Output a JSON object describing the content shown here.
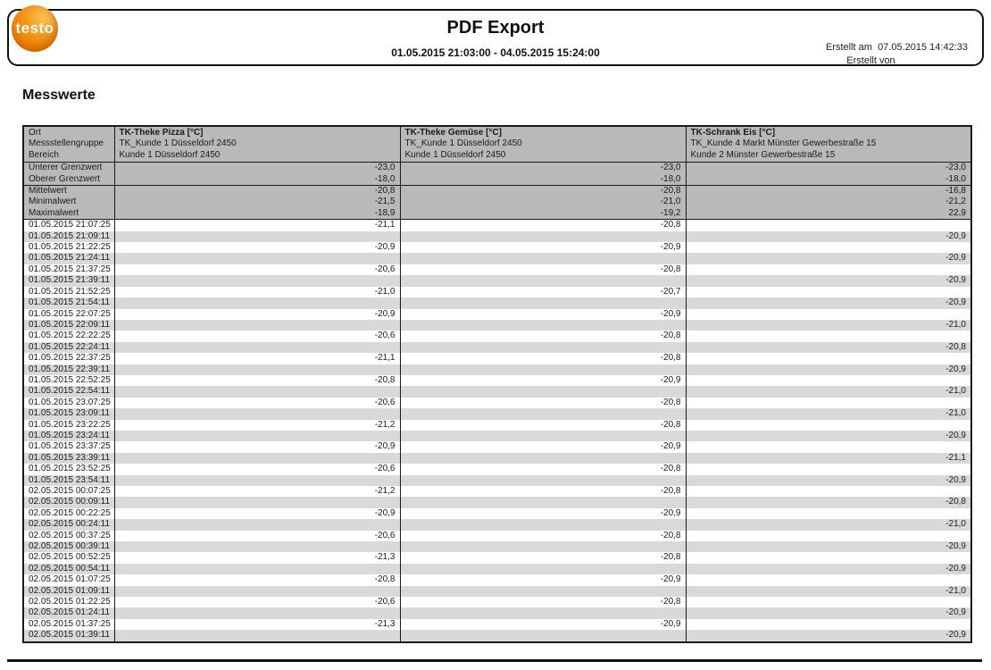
{
  "header": {
    "logo_text": "testo",
    "title": "PDF Export",
    "date_range": "01.05.2015 21:03:00 - 04.05.2015 15:24:00",
    "created_at_label": "Erstellt am",
    "created_at_value": "07.05.2015 14:42:33",
    "created_by_label": "Erstellt von"
  },
  "section_title": "Messwerte",
  "colors": {
    "header_gray": "#b9b9b9",
    "row_gray": "#d9d9d9",
    "border_black": "#1a1a1a",
    "logo_orange": "#ef7d00"
  },
  "table": {
    "row_header_labels": [
      "Ort",
      "Messstellengruppe",
      "Bereich"
    ],
    "columns": [
      {
        "title": "TK-Theke Pizza [°C]",
        "group": "TK_Kunde 1 Düsseldorf 2450",
        "area": "Kunde 1 Düsseldorf 2450"
      },
      {
        "title": "TK-Theke Gemüse [°C]",
        "group": "TK_Kunde 1 Düsseldorf 2450",
        "area": "Kunde 1 Düsseldorf 2450"
      },
      {
        "title": "TK-Schrank Eis [°C]",
        "group": "TK_Kunde 4 Markt Münster Gewerbestraße 15",
        "area": "Kunde 2 Münster Gewerbestraße 15"
      }
    ],
    "limits": [
      {
        "label": "Unterer Grenzwert",
        "values": [
          "-23,0",
          "-23,0",
          "-23,0"
        ]
      },
      {
        "label": "Oberer Grenzwert",
        "values": [
          "-18,0",
          "-18,0",
          "-18,0"
        ]
      }
    ],
    "stats": [
      {
        "label": "Mittelwert",
        "values": [
          "-20,8",
          "-20,8",
          "-16,8"
        ]
      },
      {
        "label": "Minimalwert",
        "values": [
          "-21,5",
          "-21,0",
          "-21,2"
        ]
      },
      {
        "label": "Maximalwert",
        "values": [
          "-18,9",
          "-19,2",
          "22,9"
        ]
      }
    ],
    "rows": [
      {
        "ts": "01.05.2015 21:07:25",
        "values": [
          "-21,1",
          "-20,8",
          ""
        ]
      },
      {
        "ts": "01.05.2015 21:09:11",
        "values": [
          "",
          "",
          "-20,9"
        ]
      },
      {
        "ts": "01.05.2015 21:22:25",
        "values": [
          "-20,9",
          "-20,9",
          ""
        ]
      },
      {
        "ts": "01.05.2015 21:24:11",
        "values": [
          "",
          "",
          "-20,9"
        ]
      },
      {
        "ts": "01.05.2015 21:37:25",
        "values": [
          "-20,6",
          "-20,8",
          ""
        ]
      },
      {
        "ts": "01.05.2015 21:39:11",
        "values": [
          "",
          "",
          "-20,9"
        ]
      },
      {
        "ts": "01.05.2015 21:52:25",
        "values": [
          "-21,0",
          "-20,7",
          ""
        ]
      },
      {
        "ts": "01.05.2015 21:54:11",
        "values": [
          "",
          "",
          "-20,9"
        ]
      },
      {
        "ts": "01.05.2015 22:07:25",
        "values": [
          "-20,9",
          "-20,9",
          ""
        ]
      },
      {
        "ts": "01.05.2015 22:09:11",
        "values": [
          "",
          "",
          "-21,0"
        ]
      },
      {
        "ts": "01.05.2015 22:22:25",
        "values": [
          "-20,6",
          "-20,8",
          ""
        ]
      },
      {
        "ts": "01.05.2015 22:24:11",
        "values": [
          "",
          "",
          "-20,8"
        ]
      },
      {
        "ts": "01.05.2015 22:37:25",
        "values": [
          "-21,1",
          "-20,8",
          ""
        ]
      },
      {
        "ts": "01.05.2015 22:39:11",
        "values": [
          "",
          "",
          "-20,9"
        ]
      },
      {
        "ts": "01.05.2015 22:52:25",
        "values": [
          "-20,8",
          "-20,9",
          ""
        ]
      },
      {
        "ts": "01.05.2015 22:54:11",
        "values": [
          "",
          "",
          "-21,0"
        ]
      },
      {
        "ts": "01.05.2015 23:07:25",
        "values": [
          "-20,6",
          "-20,8",
          ""
        ]
      },
      {
        "ts": "01.05.2015 23:09:11",
        "values": [
          "",
          "",
          "-21,0"
        ]
      },
      {
        "ts": "01.05.2015 23:22:25",
        "values": [
          "-21,2",
          "-20,8",
          ""
        ]
      },
      {
        "ts": "01.05.2015 23:24:11",
        "values": [
          "",
          "",
          "-20,9"
        ]
      },
      {
        "ts": "01.05.2015 23:37:25",
        "values": [
          "-20,9",
          "-20,9",
          ""
        ]
      },
      {
        "ts": "01.05.2015 23:39:11",
        "values": [
          "",
          "",
          "-21,1"
        ]
      },
      {
        "ts": "01.05.2015 23:52:25",
        "values": [
          "-20,6",
          "-20,8",
          ""
        ]
      },
      {
        "ts": "01.05.2015 23:54:11",
        "values": [
          "",
          "",
          "-20,9"
        ]
      },
      {
        "ts": "02.05.2015 00:07:25",
        "values": [
          "-21,2",
          "-20,8",
          ""
        ]
      },
      {
        "ts": "02.05.2015 00:09:11",
        "values": [
          "",
          "",
          "-20,8"
        ]
      },
      {
        "ts": "02.05.2015 00:22:25",
        "values": [
          "-20,9",
          "-20,9",
          ""
        ]
      },
      {
        "ts": "02.05.2015 00:24:11",
        "values": [
          "",
          "",
          "-21,0"
        ]
      },
      {
        "ts": "02.05.2015 00:37:25",
        "values": [
          "-20,6",
          "-20,8",
          ""
        ]
      },
      {
        "ts": "02.05.2015 00:39:11",
        "values": [
          "",
          "",
          "-20,9"
        ]
      },
      {
        "ts": "02.05.2015 00:52:25",
        "values": [
          "-21,3",
          "-20,8",
          ""
        ]
      },
      {
        "ts": "02.05.2015 00:54:11",
        "values": [
          "",
          "",
          "-20,9"
        ]
      },
      {
        "ts": "02.05.2015 01:07:25",
        "values": [
          "-20,8",
          "-20,9",
          ""
        ]
      },
      {
        "ts": "02.05.2015 01:09:11",
        "values": [
          "",
          "",
          "-21,0"
        ]
      },
      {
        "ts": "02.05.2015 01:22:25",
        "values": [
          "-20,6",
          "-20,8",
          ""
        ]
      },
      {
        "ts": "02.05.2015 01:24:11",
        "values": [
          "",
          "",
          "-20,9"
        ]
      },
      {
        "ts": "02.05.2015 01:37:25",
        "values": [
          "-21,3",
          "-20,9",
          ""
        ]
      },
      {
        "ts": "02.05.2015 01:39:11",
        "values": [
          "",
          "",
          "-20,9"
        ]
      }
    ]
  }
}
